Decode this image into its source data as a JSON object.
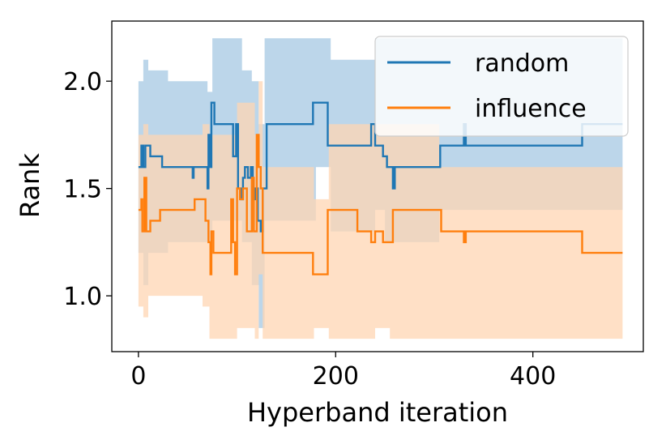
{
  "chart_data": {
    "type": "line",
    "title": "",
    "xlabel": "Hyperband iteration",
    "ylabel": "Rank",
    "xlim": [
      -27,
      512
    ],
    "ylim": [
      0.74,
      2.28
    ],
    "xticks": [
      0,
      200,
      400
    ],
    "xtick_labels": [
      "0",
      "200",
      "400"
    ],
    "yticks": [
      1.0,
      1.5,
      2.0
    ],
    "ytick_labels": [
      "1.0",
      "1.5",
      "2.0"
    ],
    "grid": false,
    "legend": {
      "position": "top-right",
      "entries": [
        "random",
        "influence"
      ]
    },
    "series": [
      {
        "name": "random",
        "color": "#1f77b4",
        "band_color": "#a6c8e3",
        "steps": [
          [
            0,
            1.6
          ],
          [
            3,
            1.7
          ],
          [
            5,
            1.6
          ],
          [
            7,
            1.7
          ],
          [
            9,
            1.7
          ],
          [
            12,
            1.65
          ],
          [
            20,
            1.65
          ],
          [
            24,
            1.6
          ],
          [
            40,
            1.6
          ],
          [
            55,
            1.55
          ],
          [
            56,
            1.6
          ],
          [
            68,
            1.6
          ],
          [
            70,
            1.5
          ],
          [
            71,
            1.75
          ],
          [
            72,
            1.6
          ],
          [
            74,
            1.9
          ],
          [
            77,
            1.8
          ],
          [
            94,
            1.8
          ],
          [
            96,
            1.65
          ],
          [
            99,
            1.8
          ],
          [
            101,
            1.5
          ],
          [
            104,
            1.45
          ],
          [
            106,
            1.55
          ],
          [
            108,
            1.6
          ],
          [
            111,
            1.55
          ],
          [
            114,
            1.6
          ],
          [
            116,
            1.45
          ],
          [
            119,
            1.5
          ],
          [
            121,
            1.35
          ],
          [
            124,
            1.3
          ],
          [
            126,
            1.5
          ],
          [
            130,
            1.8
          ],
          [
            175,
            1.8
          ],
          [
            177,
            1.9
          ],
          [
            190,
            1.9
          ],
          [
            192,
            1.7
          ],
          [
            234,
            1.7
          ],
          [
            236,
            1.8
          ],
          [
            240,
            1.7
          ],
          [
            246,
            1.7
          ],
          [
            248,
            1.65
          ],
          [
            252,
            1.6
          ],
          [
            256,
            1.6
          ],
          [
            258,
            1.5
          ],
          [
            260,
            1.6
          ],
          [
            304,
            1.6
          ],
          [
            306,
            1.7
          ],
          [
            328,
            1.7
          ],
          [
            330,
            1.8
          ],
          [
            332,
            1.7
          ],
          [
            448,
            1.7
          ],
          [
            450,
            1.8
          ],
          [
            491,
            1.8
          ]
        ],
        "band": [
          [
            0,
            1.2,
            2.0
          ],
          [
            5,
            1.05,
            2.1
          ],
          [
            10,
            1.2,
            2.05
          ],
          [
            30,
            1.25,
            2.0
          ],
          [
            70,
            1.25,
            1.95
          ],
          [
            75,
            1.35,
            2.2
          ],
          [
            95,
            1.35,
            2.2
          ],
          [
            105,
            1.25,
            2.05
          ],
          [
            115,
            1.05,
            2.0
          ],
          [
            122,
            0.85,
            1.8
          ],
          [
            128,
            1.35,
            2.2
          ],
          [
            175,
            1.35,
            2.2
          ],
          [
            180,
            1.6,
            2.2
          ],
          [
            190,
            1.6,
            2.2
          ],
          [
            195,
            1.3,
            2.1
          ],
          [
            235,
            1.3,
            2.1
          ],
          [
            240,
            1.4,
            2.2
          ],
          [
            250,
            1.25,
            2.2
          ],
          [
            260,
            1.25,
            2.2
          ],
          [
            305,
            1.4,
            2.2
          ],
          [
            330,
            1.4,
            2.2
          ],
          [
            450,
            1.4,
            2.2
          ],
          [
            491,
            1.4,
            2.2
          ]
        ]
      },
      {
        "name": "influence",
        "color": "#ff7f0e",
        "band_color": "#ffd6b3",
        "steps": [
          [
            0,
            1.4
          ],
          [
            3,
            1.45
          ],
          [
            4,
            1.3
          ],
          [
            6,
            1.55
          ],
          [
            8,
            1.3
          ],
          [
            10,
            1.3
          ],
          [
            12,
            1.35
          ],
          [
            20,
            1.35
          ],
          [
            22,
            1.4
          ],
          [
            35,
            1.4
          ],
          [
            37,
            1.4
          ],
          [
            55,
            1.4
          ],
          [
            57,
            1.45
          ],
          [
            66,
            1.45
          ],
          [
            68,
            1.35
          ],
          [
            71,
            1.25
          ],
          [
            73,
            1.1
          ],
          [
            74,
            1.3
          ],
          [
            76,
            1.2
          ],
          [
            92,
            1.2
          ],
          [
            94,
            1.45
          ],
          [
            96,
            1.25
          ],
          [
            98,
            1.1
          ],
          [
            100,
            1.5
          ],
          [
            103,
            1.45
          ],
          [
            106,
            1.5
          ],
          [
            110,
            1.3
          ],
          [
            115,
            1.55
          ],
          [
            117,
            1.3
          ],
          [
            120,
            1.75
          ],
          [
            122,
            1.6
          ],
          [
            124,
            1.5
          ],
          [
            126,
            1.2
          ],
          [
            175,
            1.2
          ],
          [
            177,
            1.1
          ],
          [
            190,
            1.1
          ],
          [
            192,
            1.4
          ],
          [
            220,
            1.4
          ],
          [
            222,
            1.3
          ],
          [
            234,
            1.3
          ],
          [
            236,
            1.25
          ],
          [
            240,
            1.3
          ],
          [
            246,
            1.3
          ],
          [
            248,
            1.25
          ],
          [
            256,
            1.25
          ],
          [
            258,
            1.4
          ],
          [
            305,
            1.4
          ],
          [
            307,
            1.3
          ],
          [
            328,
            1.3
          ],
          [
            330,
            1.25
          ],
          [
            332,
            1.3
          ],
          [
            448,
            1.3
          ],
          [
            450,
            1.2
          ],
          [
            491,
            1.2
          ]
        ],
        "band": [
          [
            0,
            0.95,
            1.75
          ],
          [
            5,
            0.9,
            1.8
          ],
          [
            10,
            1.0,
            1.75
          ],
          [
            30,
            1.0,
            1.75
          ],
          [
            65,
            0.95,
            1.8
          ],
          [
            72,
            0.8,
            1.75
          ],
          [
            95,
            0.8,
            1.75
          ],
          [
            100,
            0.85,
            1.9
          ],
          [
            118,
            0.8,
            1.75
          ],
          [
            122,
            1.1,
            2.0
          ],
          [
            126,
            0.8,
            1.6
          ],
          [
            175,
            0.8,
            1.6
          ],
          [
            178,
            0.85,
            1.45
          ],
          [
            190,
            0.85,
            1.45
          ],
          [
            193,
            0.8,
            1.8
          ],
          [
            235,
            0.8,
            1.8
          ],
          [
            240,
            0.85,
            1.8
          ],
          [
            255,
            0.8,
            1.8
          ],
          [
            260,
            0.8,
            1.8
          ],
          [
            305,
            0.8,
            1.6
          ],
          [
            330,
            0.8,
            1.6
          ],
          [
            450,
            0.8,
            1.6
          ],
          [
            491,
            0.8,
            1.6
          ]
        ]
      }
    ]
  }
}
